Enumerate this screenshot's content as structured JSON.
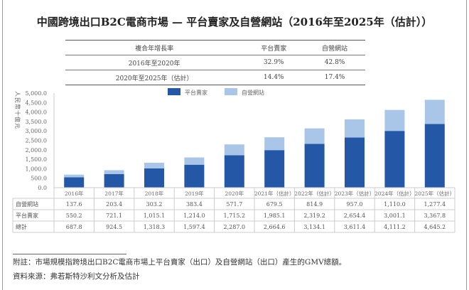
{
  "chart_data": {
    "type": "bar",
    "stacked": true,
    "title": "中國跨境出口B2C電商市場 — 平台賣家及自營網站（2016年至2025年（估計））",
    "ylabel": "人民幣十億元",
    "ylim": [
      0,
      5000
    ],
    "yticks": [
      "5,000.0",
      "4,500.0",
      "4,000.0",
      "3,500.0",
      "3,000.0",
      "2,500.0",
      "2,000.0",
      "1,500.0",
      "1,000.0",
      "500.0",
      "0.0"
    ],
    "categories": [
      "2016年",
      "2017年",
      "2018年",
      "2019年",
      "2020年",
      "2021年（估計）",
      "2022年（估計）",
      "2023年（估計）",
      "2024年（估計）",
      "2025年（估計）"
    ],
    "series": [
      {
        "name": "平台賣家",
        "color": "#2457a6",
        "values": [
          550.2,
          721.1,
          1015.1,
          1214.0,
          1715.2,
          1985.1,
          2319.2,
          2654.4,
          3001.1,
          3367.8
        ],
        "labels": [
          "550.2",
          "721.1",
          "1,015.1",
          "1,214.0",
          "1,715.2",
          "1,985.1",
          "2,319.2",
          "2,654.4",
          "3,001.1",
          "3,367.8"
        ]
      },
      {
        "name": "自營網站",
        "color": "#a9c6e8",
        "values": [
          137.6,
          203.4,
          303.2,
          383.4,
          571.7,
          679.5,
          814.9,
          957.0,
          1110.0,
          1277.4
        ],
        "labels": [
          "137.6",
          "203.4",
          "303.2",
          "383.4",
          "571.7",
          "679.5",
          "814.9",
          "957.0",
          "1,110.0",
          "1,277.4"
        ]
      }
    ],
    "total": {
      "name": "總計",
      "labels": [
        "687.8",
        "924.5",
        "1,318.3",
        "1,597.4",
        "2,287.0",
        "2,664.6",
        "3,134.1",
        "3,611.4",
        "4,111.2",
        "4,645.2"
      ]
    },
    "legend_position": "top-center"
  },
  "cagr": {
    "headers": [
      "複合年增長率",
      "平台賣家",
      "自營網站"
    ],
    "rows": [
      [
        "2016年至2020年",
        "32.9%",
        "42.8%"
      ],
      [
        "2020年至2025年（估計）",
        "14.4%",
        "17.4%"
      ]
    ]
  },
  "notes": {
    "note": "附註：市場規模指跨境出口B2C電商市場上平台賣家（出口）及自營網站（出口）產生的GMV總額。",
    "source": "資料來源：弗若斯特沙利文分析及估計"
  }
}
